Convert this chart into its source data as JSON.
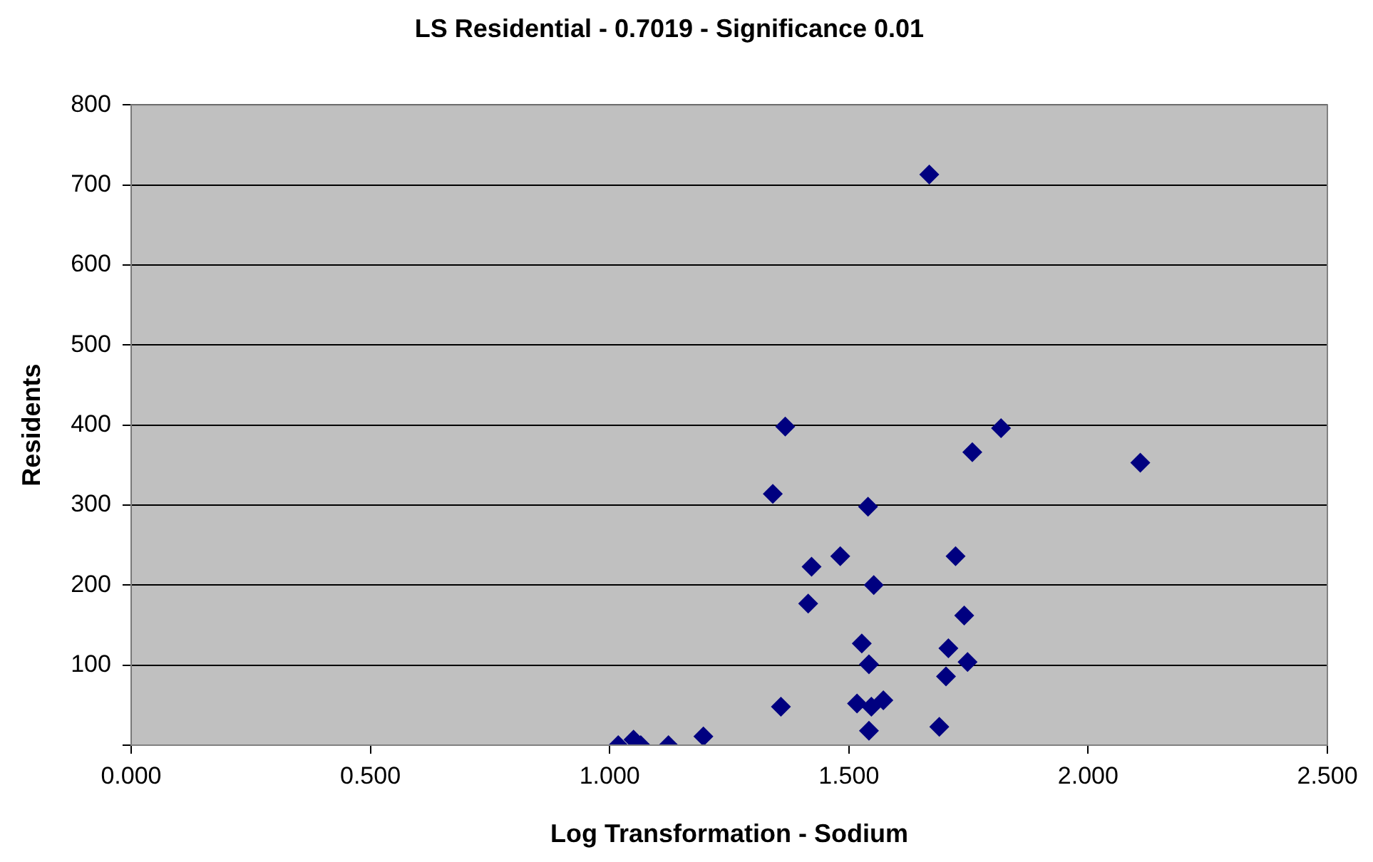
{
  "chart_data": {
    "type": "scatter",
    "title": "LS Residential - 0.7019 - Significance 0.01",
    "xlabel": "Log Transformation - Sodium",
    "ylabel": "Residents",
    "x": [
      1.668,
      1.367,
      1.818,
      1.758,
      2.109,
      1.341,
      1.54,
      1.482,
      1.723,
      1.422,
      1.552,
      1.415,
      1.741,
      1.527,
      1.708,
      1.542,
      1.748,
      1.703,
      1.358,
      1.517,
      1.547,
      1.572,
      1.542,
      1.689,
      1.196,
      1.05,
      1.018,
      1.065,
      1.123
    ],
    "series": [
      {
        "color": "#000080",
        "values": [
          713,
          398,
          396,
          366,
          353,
          314,
          298,
          236,
          236,
          223,
          200,
          177,
          162,
          127,
          121,
          101,
          104,
          86,
          48,
          52,
          48,
          56,
          18,
          23,
          11,
          7,
          0,
          0,
          0
        ]
      }
    ],
    "xlim": [
      0,
      2.5
    ],
    "xticks": [
      {
        "value": 0,
        "label": "0.000"
      },
      {
        "value": 0.5,
        "label": "0.500"
      },
      {
        "value": 1,
        "label": "1.000"
      },
      {
        "value": 1.5,
        "label": "1.500"
      },
      {
        "value": 2,
        "label": "2.000"
      },
      {
        "value": 2.5,
        "label": "2.500"
      }
    ],
    "ylim": [
      0,
      800
    ],
    "yticks": [
      {
        "value": 0,
        "label": null
      },
      100,
      200,
      300,
      400,
      500,
      600,
      700,
      800
    ],
    "grid": "y",
    "legend": false,
    "marker": "diamond"
  }
}
